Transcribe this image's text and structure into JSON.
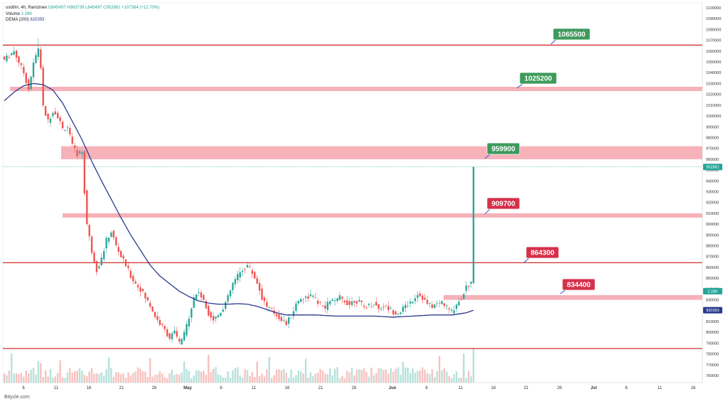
{
  "legend": {
    "symbol": "usdt/irr, 4h, Ramzinex",
    "ohlc": "O845497 H963739 L845497 C952881 +107384 (+12.70%)",
    "volume_label": "Volume",
    "volume_value": "2.28K",
    "dema_label": "DEMA (200)",
    "dema_value": "820393"
  },
  "watermark": "Bitycle.com",
  "colors": {
    "up": "#26a69a",
    "down": "#ef5350",
    "dema": "#2a3a8c",
    "zone": "#f5a3ad",
    "line": "#d32f2f",
    "label_green": "#3e9a5c",
    "label_red": "#d6304a"
  },
  "chart_data": {
    "type": "candlestick",
    "timeframe": "4h",
    "ylim": [
      755000,
      1100000
    ],
    "y_ticks": [
      760000,
      770000,
      780000,
      790000,
      800000,
      810000,
      820000,
      830000,
      840000,
      850000,
      860000,
      870000,
      880000,
      890000,
      900000,
      910000,
      920000,
      930000,
      940000,
      950000,
      960000,
      970000,
      980000,
      990000,
      1000000,
      1010000,
      1020000,
      1030000,
      1040000,
      1050000,
      1060000,
      1070000,
      1080000,
      1090000,
      1100000
    ],
    "x_ticks": [
      "6",
      "11",
      "16",
      "21",
      "26",
      "May",
      "6",
      "11",
      "16",
      "21",
      "26",
      "Jun",
      "6",
      "11",
      "16",
      "21",
      "26",
      "Jul",
      "6",
      "11",
      "16"
    ],
    "price_path": [
      [
        0,
        1052000
      ],
      [
        4,
        1060000
      ],
      [
        8,
        1040000
      ],
      [
        10,
        1025000
      ],
      [
        12,
        1048000
      ],
      [
        14,
        1063000
      ],
      [
        15,
        1045000
      ],
      [
        16,
        1008000
      ],
      [
        18,
        995000
      ],
      [
        20,
        1005000
      ],
      [
        22,
        1000000
      ],
      [
        24,
        988000
      ],
      [
        26,
        990000
      ],
      [
        28,
        972000
      ],
      [
        30,
        965000
      ],
      [
        32,
        967000
      ],
      [
        33,
        930000
      ],
      [
        34,
        900000
      ],
      [
        36,
        875000
      ],
      [
        38,
        858000
      ],
      [
        40,
        868000
      ],
      [
        42,
        885000
      ],
      [
        44,
        893000
      ],
      [
        46,
        880000
      ],
      [
        48,
        870000
      ],
      [
        50,
        862000
      ],
      [
        52,
        852000
      ],
      [
        54,
        845000
      ],
      [
        56,
        840000
      ],
      [
        58,
        832000
      ],
      [
        60,
        825000
      ],
      [
        62,
        815000
      ],
      [
        64,
        808000
      ],
      [
        66,
        802000
      ],
      [
        68,
        795000
      ],
      [
        70,
        800000
      ],
      [
        72,
        790000
      ],
      [
        74,
        798000
      ],
      [
        76,
        815000
      ],
      [
        78,
        832000
      ],
      [
        80,
        838000
      ],
      [
        82,
        828000
      ],
      [
        84,
        818000
      ],
      [
        86,
        812000
      ],
      [
        88,
        816000
      ],
      [
        90,
        823000
      ],
      [
        92,
        832000
      ],
      [
        94,
        845000
      ],
      [
        96,
        852000
      ],
      [
        98,
        858000
      ],
      [
        100,
        862000
      ],
      [
        102,
        855000
      ],
      [
        104,
        846000
      ],
      [
        106,
        832000
      ],
      [
        108,
        824000
      ],
      [
        110,
        820000
      ],
      [
        112,
        816000
      ],
      [
        114,
        812000
      ],
      [
        116,
        808000
      ],
      [
        118,
        815000
      ],
      [
        120,
        826000
      ],
      [
        122,
        832000
      ],
      [
        124,
        832000
      ],
      [
        126,
        834000
      ],
      [
        128,
        830000
      ],
      [
        130,
        826000
      ],
      [
        132,
        822000
      ],
      [
        134,
        830000
      ],
      [
        136,
        828000
      ],
      [
        138,
        832000
      ],
      [
        140,
        829000
      ],
      [
        142,
        826000
      ],
      [
        144,
        830000
      ],
      [
        146,
        828000
      ],
      [
        148,
        823000
      ],
      [
        150,
        825000
      ],
      [
        152,
        827000
      ],
      [
        154,
        822000
      ],
      [
        156,
        824000
      ],
      [
        158,
        822000
      ],
      [
        160,
        819000
      ],
      [
        162,
        818000
      ],
      [
        164,
        822000
      ],
      [
        166,
        826000
      ],
      [
        168,
        830000
      ],
      [
        170,
        836000
      ],
      [
        172,
        832000
      ],
      [
        174,
        826000
      ],
      [
        176,
        824000
      ],
      [
        178,
        826000
      ],
      [
        180,
        828000
      ],
      [
        182,
        823000
      ],
      [
        184,
        819000
      ],
      [
        186,
        826000
      ],
      [
        188,
        832000
      ],
      [
        190,
        842000
      ],
      [
        192,
        845000
      ],
      [
        193,
        952881
      ]
    ],
    "dema_path": [
      [
        0,
        1014000
      ],
      [
        4,
        1022000
      ],
      [
        8,
        1028000
      ],
      [
        12,
        1030000
      ],
      [
        16,
        1029000
      ],
      [
        20,
        1024000
      ],
      [
        24,
        1012000
      ],
      [
        28,
        995000
      ],
      [
        32,
        978000
      ],
      [
        36,
        958000
      ],
      [
        40,
        940000
      ],
      [
        44,
        923000
      ],
      [
        48,
        906000
      ],
      [
        52,
        890000
      ],
      [
        56,
        876000
      ],
      [
        60,
        862000
      ],
      [
        64,
        852000
      ],
      [
        68,
        845000
      ],
      [
        72,
        838000
      ],
      [
        76,
        833000
      ],
      [
        80,
        829000
      ],
      [
        84,
        827000
      ],
      [
        88,
        826000
      ],
      [
        92,
        826000
      ],
      [
        96,
        826500
      ],
      [
        100,
        826000
      ],
      [
        104,
        824000
      ],
      [
        108,
        821000
      ],
      [
        112,
        818000
      ],
      [
        116,
        816000
      ],
      [
        120,
        816000
      ],
      [
        128,
        816000
      ],
      [
        136,
        815000
      ],
      [
        144,
        815000
      ],
      [
        152,
        815000
      ],
      [
        160,
        814000
      ],
      [
        168,
        815000
      ],
      [
        176,
        816000
      ],
      [
        184,
        816000
      ],
      [
        190,
        818000
      ],
      [
        193,
        820393
      ]
    ],
    "horizontal_levels": [
      {
        "label": "1065500",
        "style": "line",
        "value": 1065500,
        "color": "green"
      },
      {
        "label": "1025200",
        "style": "zone",
        "low": 1023000,
        "high": 1027000,
        "color": "green"
      },
      {
        "label": "959900",
        "style": "zone",
        "low": 960000,
        "high": 972000,
        "color": "green"
      },
      {
        "label": "909700",
        "style": "zone",
        "low": 906000,
        "high": 910000,
        "color": "red"
      },
      {
        "label": "864300",
        "style": "line",
        "value": 864300,
        "color": "red"
      },
      {
        "label": "834400",
        "style": "zone",
        "low": 830000,
        "high": 834400,
        "color": "red"
      },
      {
        "label": "",
        "style": "line",
        "value": 785000,
        "color": "red"
      }
    ],
    "last_price_tag": "952881",
    "volume_tag": "2.28K",
    "dema_tag": "820393"
  }
}
